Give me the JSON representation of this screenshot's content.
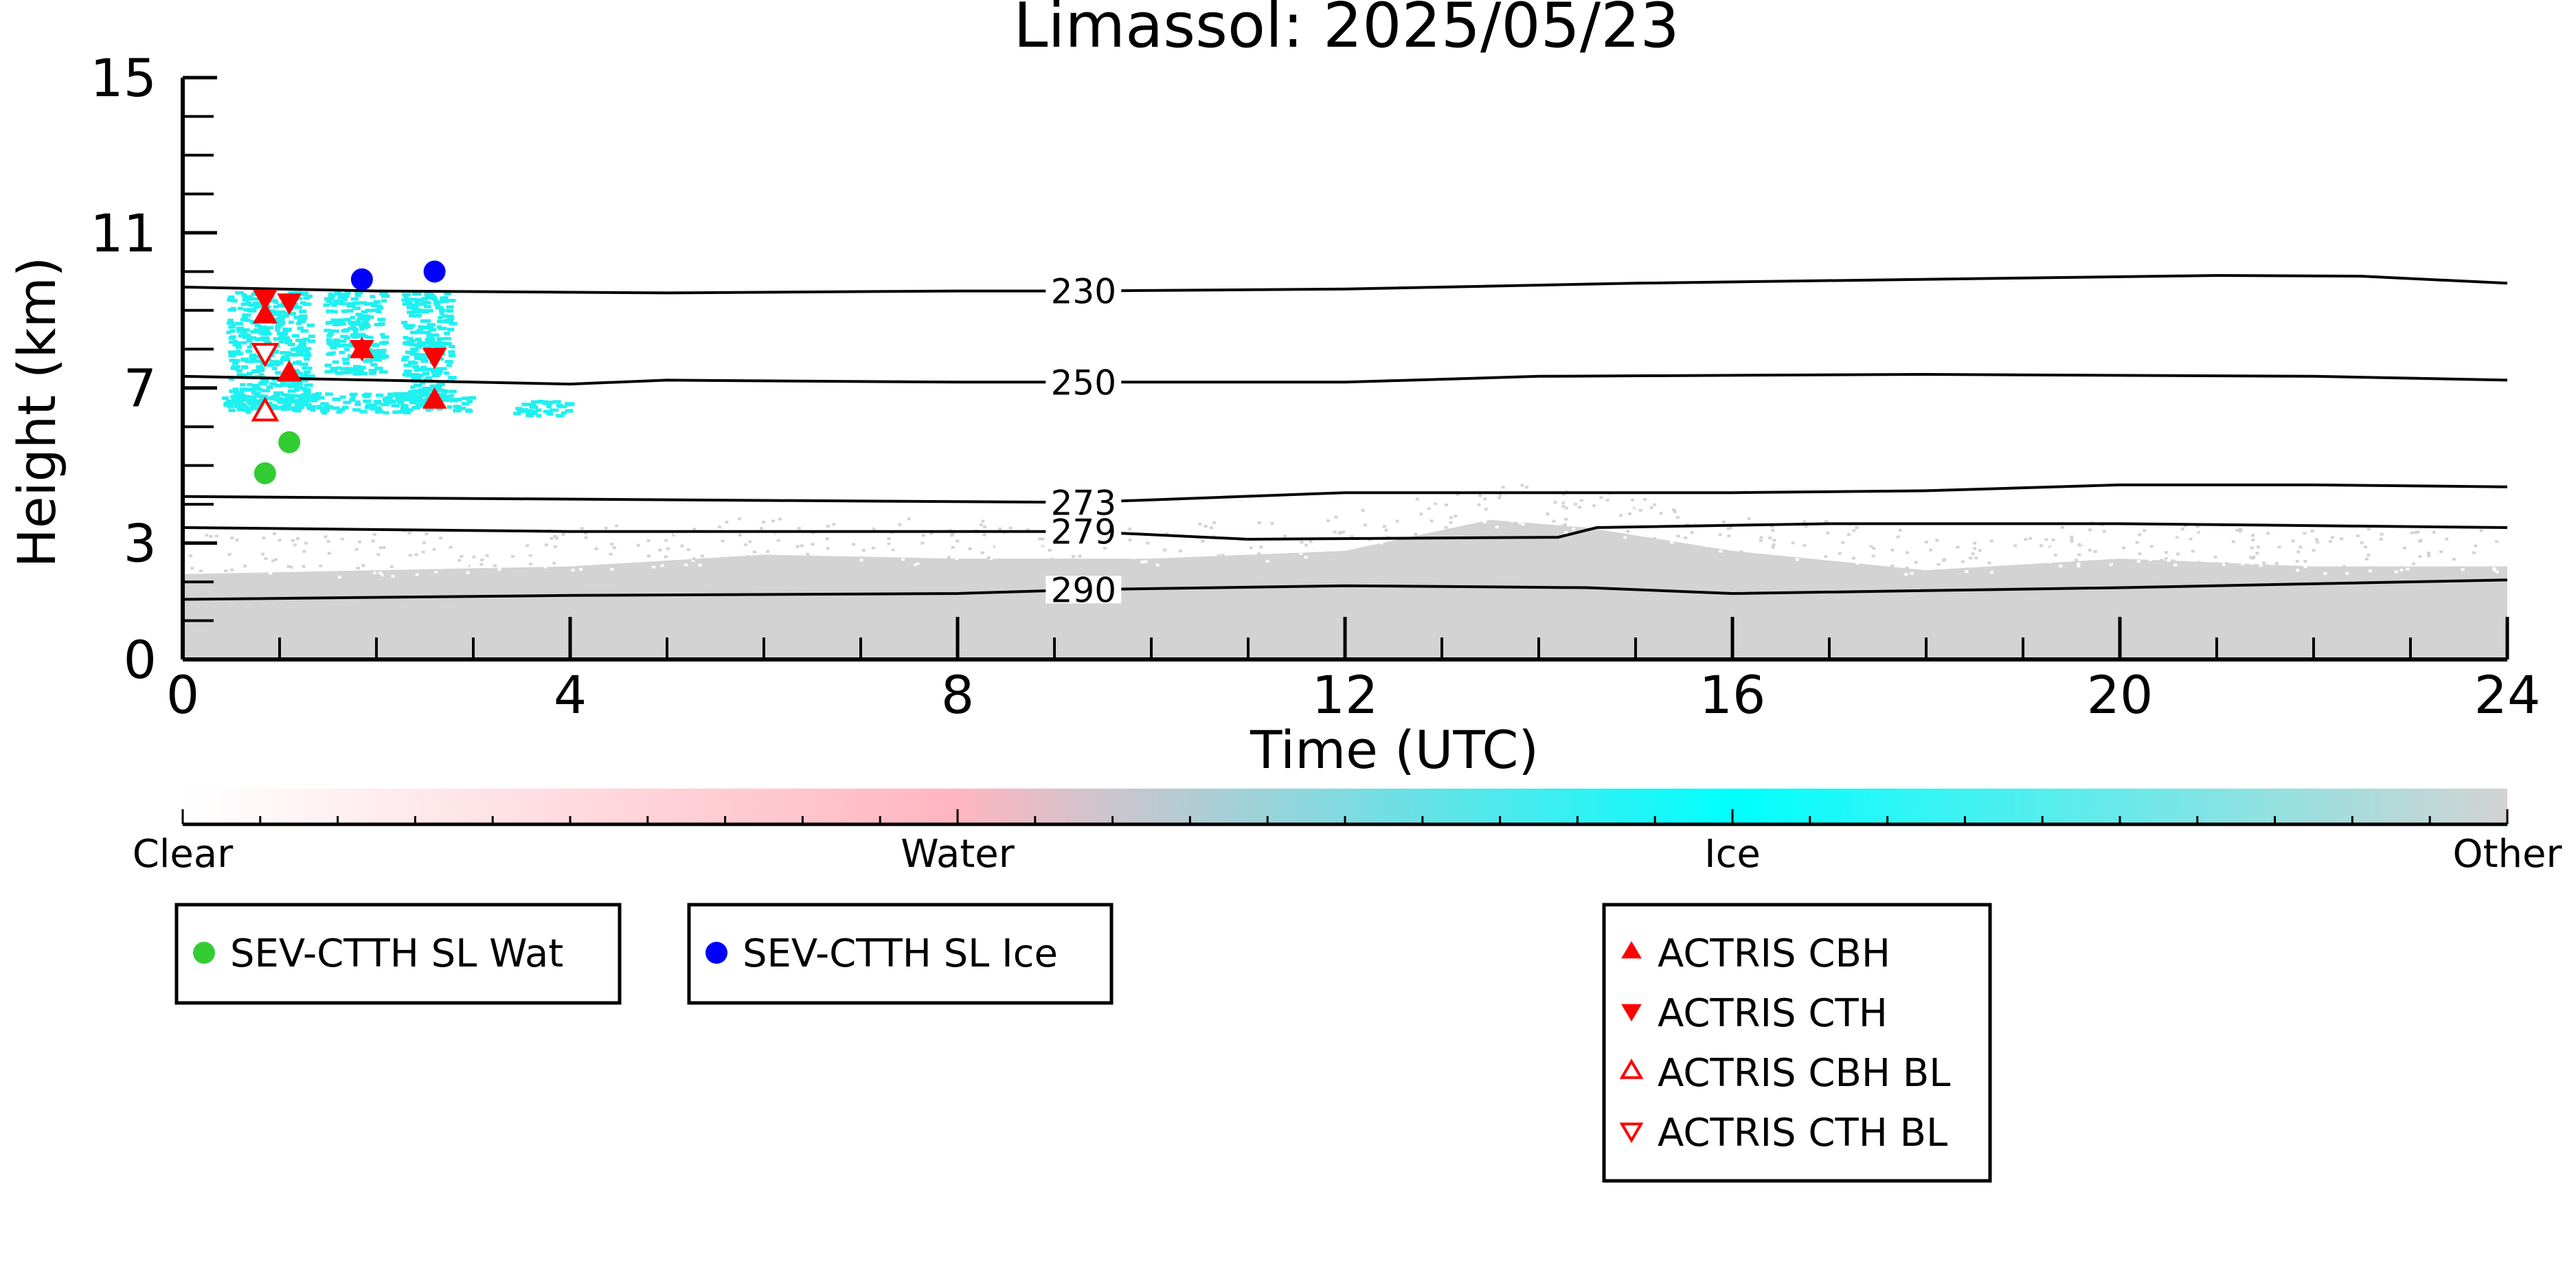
{
  "chart_data": {
    "type": "scatter",
    "title": "Limassol: 2025/05/23",
    "xlabel": "Time (UTC)",
    "ylabel": "Height (km)",
    "xlim": [
      0,
      24
    ],
    "ylim": [
      0,
      15
    ],
    "x_major_ticks": [
      0,
      4,
      8,
      12,
      16,
      20,
      24
    ],
    "x_tick_labels": [
      "0",
      "4",
      "8",
      "12",
      "16",
      "20",
      "24"
    ],
    "y_major_ticks": [
      0,
      3,
      7,
      11,
      15
    ],
    "y_tick_labels": [
      "0",
      "3",
      "7",
      "11",
      "15"
    ],
    "grid": false,
    "temperature_contours": [
      {
        "label": "230",
        "x": [
          0,
          2,
          5,
          8,
          9.3,
          12,
          15,
          18,
          21,
          22.5,
          24
        ],
        "y": [
          9.6,
          9.5,
          9.45,
          9.5,
          9.5,
          9.55,
          9.7,
          9.8,
          9.9,
          9.88,
          9.7
        ]
      },
      {
        "label": "250",
        "x": [
          0,
          2,
          4,
          5,
          8,
          9.3,
          12,
          14,
          18,
          22,
          24
        ],
        "y": [
          7.3,
          7.2,
          7.1,
          7.2,
          7.15,
          7.15,
          7.15,
          7.3,
          7.35,
          7.3,
          7.2
        ]
      },
      {
        "label": "273",
        "x": [
          0,
          3,
          6,
          9.3,
          12,
          16,
          18,
          20,
          22,
          24
        ],
        "y": [
          4.2,
          4.15,
          4.1,
          4.05,
          4.3,
          4.3,
          4.35,
          4.5,
          4.5,
          4.45
        ]
      },
      {
        "label": "279",
        "x": [
          0,
          4,
          8,
          9.3,
          11,
          14.2,
          14.6,
          17,
          20,
          24
        ],
        "y": [
          3.4,
          3.3,
          3.3,
          3.3,
          3.1,
          3.15,
          3.4,
          3.5,
          3.5,
          3.4
        ]
      },
      {
        "label": "290",
        "x": [
          0,
          4,
          8,
          9.3,
          12,
          14.5,
          16,
          20,
          24
        ],
        "y": [
          1.55,
          1.65,
          1.7,
          1.8,
          1.9,
          1.85,
          1.7,
          1.85,
          2.05
        ]
      }
    ],
    "contour_label_x": 9.3,
    "cloud_mask_legend": {
      "labels": [
        "Clear",
        "Water",
        "Ice",
        "Other"
      ],
      "colors": [
        "#ffffff",
        "#ffb6c1",
        "#00ffff",
        "#d3d3d3"
      ]
    },
    "cloud_mask": {
      "ice_patches": [
        {
          "x": [
            0.45,
            1.3
          ],
          "y": [
            6.5,
            9.5
          ]
        },
        {
          "x": [
            1.45,
            2.05
          ],
          "y": [
            7.4,
            9.5
          ]
        },
        {
          "x": [
            2.25,
            2.75
          ],
          "y": [
            6.5,
            9.5
          ]
        },
        {
          "x": [
            0.4,
            2.95
          ],
          "y": [
            6.4,
            6.9
          ]
        },
        {
          "x": [
            3.4,
            4.0
          ],
          "y": [
            6.3,
            6.7
          ]
        }
      ],
      "other_layer": {
        "x": [
          0,
          2,
          4,
          6,
          8,
          10,
          12,
          13.5,
          14.5,
          16,
          18,
          20,
          22,
          24
        ],
        "top_y": [
          2.2,
          2.3,
          2.4,
          2.7,
          2.6,
          2.6,
          2.8,
          3.6,
          3.4,
          2.8,
          2.3,
          2.6,
          2.4,
          2.4
        ]
      }
    },
    "series": [
      {
        "name": "SEV-CTTH SL Wat",
        "marker": "circle",
        "color": "#33cc33",
        "x": [
          0.85,
          1.1
        ],
        "y": [
          4.8,
          5.6
        ]
      },
      {
        "name": "SEV-CTTH SL Ice",
        "marker": "circle",
        "color": "#0000ff",
        "x": [
          1.85,
          2.6
        ],
        "y": [
          9.8,
          10.0
        ]
      },
      {
        "name": "ACTRIS CBH",
        "marker": "triangle-up",
        "color": "#ff0000",
        "x": [
          0.85,
          1.1,
          1.85,
          2.6
        ],
        "y": [
          8.9,
          7.4,
          8.0,
          6.7
        ]
      },
      {
        "name": "ACTRIS CTH",
        "marker": "triangle-down",
        "color": "#ff0000",
        "x": [
          0.85,
          1.1,
          1.85,
          2.6
        ],
        "y": [
          9.3,
          9.2,
          8.0,
          7.8
        ]
      },
      {
        "name": "ACTRIS CBH BL",
        "marker": "triangle-up-open",
        "color": "#ff0000",
        "x": [
          0.85
        ],
        "y": [
          6.4
        ]
      },
      {
        "name": "ACTRIS CTH BL",
        "marker": "triangle-down-open",
        "color": "#ff0000",
        "x": [
          0.85
        ],
        "y": [
          7.9
        ]
      }
    ],
    "legend_groups": [
      [
        "SEV-CTTH SL Wat"
      ],
      [
        "SEV-CTTH SL Ice"
      ],
      [
        "ACTRIS CBH",
        "ACTRIS CTH",
        "ACTRIS CBH BL",
        "ACTRIS CTH BL"
      ]
    ],
    "legend_placement": "below"
  }
}
